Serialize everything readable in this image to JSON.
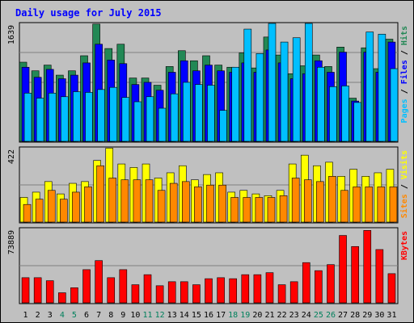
{
  "chart_data": {
    "type": "bar",
    "title": "Daily usage for July 2015",
    "categories": [
      "1",
      "2",
      "3",
      "4",
      "5",
      "6",
      "7",
      "8",
      "9",
      "10",
      "11",
      "12",
      "13",
      "14",
      "15",
      "16",
      "17",
      "18",
      "19",
      "20",
      "21",
      "22",
      "23",
      "24",
      "25",
      "26",
      "27",
      "28",
      "29",
      "30",
      "31"
    ],
    "weekend_days": [
      "4",
      "5",
      "11",
      "12",
      "18",
      "19",
      "25",
      "26"
    ],
    "panels": [
      {
        "id": "hits-files-pages",
        "max_label": "1639",
        "ylim": [
          0,
          1639
        ],
        "axis_label_parts": [
          "Pages",
          "Files",
          "Hits"
        ],
        "axis_label_separator": " / ",
        "series": [
          {
            "name": "Hits",
            "color": "#228855",
            "values": [
              1100,
              980,
              1060,
              920,
              980,
              1190,
              1630,
              1290,
              1350,
              880,
              880,
              780,
              1040,
              1260,
              1120,
              1190,
              1060,
              1030,
              1230,
              1020,
              1450,
              1200,
              940,
              1050,
              1200,
              1040,
              1310,
              600,
              1300,
              1010,
              1420
            ]
          },
          {
            "name": "Files",
            "color": "#0000ff",
            "values": [
              1030,
              890,
              1000,
              870,
              920,
              1090,
              1350,
              1130,
              1080,
              790,
              820,
              710,
              960,
              1120,
              980,
              1060,
              980,
              960,
              1090,
              960,
              1270,
              1090,
              870,
              940,
              1120,
              960,
              1240,
              560,
              1240,
              960,
              1380
            ]
          },
          {
            "name": "Pages",
            "color": "#00bfff",
            "values": [
              670,
              600,
              670,
              620,
              690,
              680,
              720,
              750,
              610,
              550,
              620,
              460,
              660,
              820,
              790,
              780,
              430,
              1030,
              1560,
              1220,
              1640,
              1380,
              1440,
              1680,
              1030,
              760,
              770,
              540,
              1520,
              1490,
              1010
            ]
          }
        ]
      },
      {
        "id": "visits-sites",
        "max_label": "422",
        "ylim": [
          0,
          422
        ],
        "axis_label_parts": [
          "Sites",
          "Visits"
        ],
        "axis_label_separator": " / ",
        "series": [
          {
            "name": "Visits",
            "color": "#ffff00",
            "values": [
              140,
              170,
              230,
              160,
              220,
              230,
              350,
              420,
              330,
              310,
              330,
              250,
              280,
              320,
              240,
              270,
              280,
              170,
              180,
              160,
              150,
              180,
              330,
              380,
              320,
              340,
              260,
              300,
              260,
              280,
              300
            ]
          },
          {
            "name": "Sites",
            "color": "#ff8800",
            "values": [
              100,
              130,
              180,
              130,
              170,
              200,
              320,
              250,
              240,
              240,
              240,
              180,
              220,
              230,
              200,
              210,
              210,
              140,
              140,
              140,
              140,
              150,
              250,
              240,
              230,
              260,
              180,
              200,
              200,
              200,
              200
            ]
          }
        ]
      },
      {
        "id": "kbytes",
        "max_label": "73889",
        "ylim": [
          0,
          73889
        ],
        "axis_label_parts": [
          "KBytes"
        ],
        "axis_label_separator": "",
        "series": [
          {
            "name": "KBytes",
            "color": "#ff0000",
            "values": [
              25000,
              25000,
              22000,
              10000,
              15000,
              33000,
              42000,
              25000,
              33000,
              18000,
              28000,
              17000,
              21000,
              21000,
              18000,
              24000,
              25000,
              24000,
              28000,
              28000,
              30000,
              18000,
              21000,
              40000,
              32000,
              38000,
              67000,
              56000,
              72000,
              53000,
              29000
            ]
          }
        ]
      }
    ],
    "axis_label_separator_color": "#000000",
    "grid": true
  },
  "colors": {
    "frame_bg": "#c0c0c0",
    "plot_bg": "#c0c0c0",
    "title": "#0000ff",
    "weekday_label": "#000000",
    "weekend_label": "#00805c",
    "border": "#000000"
  }
}
